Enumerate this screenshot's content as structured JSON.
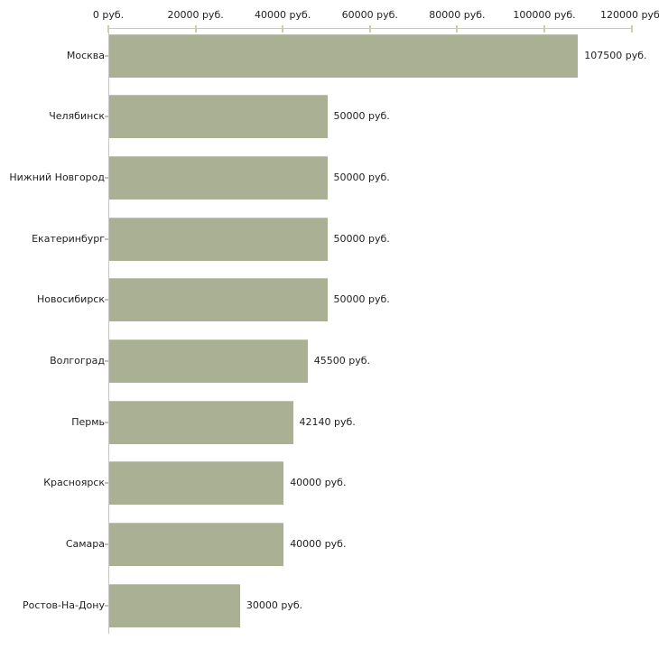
{
  "chart_data": {
    "type": "bar",
    "orientation": "horizontal",
    "title": "",
    "categories": [
      "Москва",
      "Челябинск",
      "Нижний Новгород",
      "Екатеринбург",
      "Новосибирск",
      "Волгоград",
      "Пермь",
      "Красноярск",
      "Самара",
      "Ростов-На-Дону"
    ],
    "values": [
      107500,
      50000,
      50000,
      50000,
      50000,
      45500,
      42140,
      40000,
      40000,
      30000
    ],
    "bar_labels": [
      "107500 руб.",
      "50000 руб.",
      "50000 руб.",
      "50000 руб.",
      "50000 руб.",
      "45500 руб.",
      "42140 руб.",
      "40000 руб.",
      "40000 руб.",
      "30000 руб."
    ],
    "x_ticks": [
      {
        "value": 0,
        "label": "0 руб."
      },
      {
        "value": 20000,
        "label": "20000 руб."
      },
      {
        "value": 40000,
        "label": "40000 руб."
      },
      {
        "value": 60000,
        "label": "60000 руб."
      },
      {
        "value": 80000,
        "label": "80000 руб."
      },
      {
        "value": 100000,
        "label": "100000 руб."
      },
      {
        "value": 120000,
        "label": "120000 руб."
      }
    ],
    "xlim": [
      0,
      120000
    ],
    "ylabel": "",
    "xlabel": "",
    "grid": false,
    "legend": false,
    "colors": {
      "bar": "#a9b094",
      "axis": "#c6c6c6",
      "axis_tick": "#cfceab",
      "category_tick": "#c2c2ae",
      "text": "#1f1f1f",
      "background": "#ffffff"
    }
  }
}
